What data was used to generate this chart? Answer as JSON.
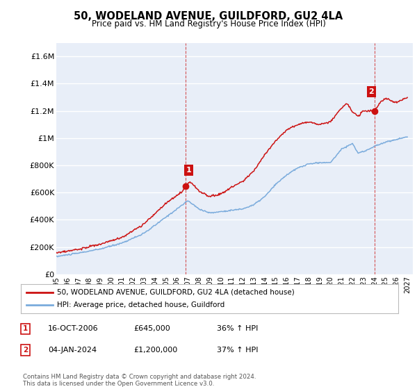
{
  "title": "50, WODELAND AVENUE, GUILDFORD, GU2 4LA",
  "subtitle": "Price paid vs. HM Land Registry's House Price Index (HPI)",
  "ylabel_ticks": [
    "£0",
    "£200K",
    "£400K",
    "£600K",
    "£800K",
    "£1M",
    "£1.2M",
    "£1.4M",
    "£1.6M"
  ],
  "ytick_values": [
    0,
    200000,
    400000,
    600000,
    800000,
    1000000,
    1200000,
    1400000,
    1600000
  ],
  "ylim": [
    0,
    1700000
  ],
  "xlim_start": 1995.0,
  "xlim_end": 2027.5,
  "sale1_x": 2006.79,
  "sale1_y": 645000,
  "sale1_label": "1",
  "sale2_x": 2024.01,
  "sale2_y": 1200000,
  "sale2_label": "2",
  "vline1_x": 2006.79,
  "vline2_x": 2024.01,
  "hpi_color": "#7aabdc",
  "price_color": "#cc1111",
  "plot_bg": "#e8eef8",
  "grid_color": "#ffffff",
  "legend_label1": "50, WODELAND AVENUE, GUILDFORD, GU2 4LA (detached house)",
  "legend_label2": "HPI: Average price, detached house, Guildford",
  "note1_label": "1",
  "note1_date": "16-OCT-2006",
  "note1_price": "£645,000",
  "note1_hpi": "36% ↑ HPI",
  "note2_label": "2",
  "note2_date": "04-JAN-2024",
  "note2_price": "£1,200,000",
  "note2_hpi": "37% ↑ HPI",
  "footer": "Contains HM Land Registry data © Crown copyright and database right 2024.\nThis data is licensed under the Open Government Licence v3.0.",
  "xtick_years": [
    1995,
    1996,
    1997,
    1998,
    1999,
    2000,
    2001,
    2002,
    2003,
    2004,
    2005,
    2006,
    2007,
    2008,
    2009,
    2010,
    2011,
    2012,
    2013,
    2014,
    2015,
    2016,
    2017,
    2018,
    2019,
    2020,
    2021,
    2022,
    2023,
    2024,
    2025,
    2026,
    2027
  ]
}
